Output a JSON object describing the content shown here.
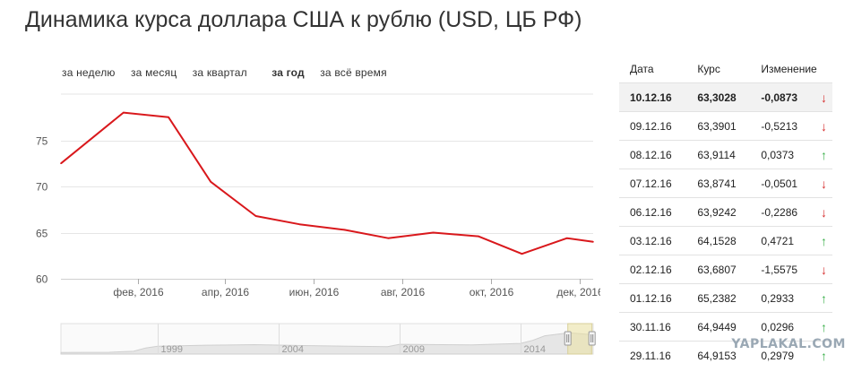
{
  "title": "Динамика курса доллара США к рублю (USD, ЦБ РФ)",
  "periods": [
    {
      "label": "за неделю",
      "active": false
    },
    {
      "label": "за месяц",
      "active": false
    },
    {
      "label": "за квартал",
      "active": false
    },
    {
      "label": "за год",
      "active": true
    },
    {
      "label": "за всё время",
      "active": false
    }
  ],
  "colors": {
    "line": "#d9181c",
    "grid": "#e6e6e6",
    "down": "#d62e2e",
    "up": "#3ab04a"
  },
  "chart_data": [
    {
      "type": "line",
      "x": [
        "2015-12-10",
        "2016-01-22",
        "2016-02-22",
        "2016-03-22",
        "2016-04-22",
        "2016-05-22",
        "2016-06-22",
        "2016-07-22",
        "2016-08-22",
        "2016-09-22",
        "2016-10-22",
        "2016-11-22",
        "2016-12-10"
      ],
      "values": [
        72.5,
        78.0,
        77.5,
        70.5,
        66.8,
        65.9,
        65.3,
        64.4,
        65.0,
        64.6,
        62.7,
        64.4,
        64.0
      ],
      "ylim": [
        60,
        80
      ],
      "yticks": [
        60,
        65,
        70,
        75
      ],
      "xticks": [
        {
          "date": "2016-02-01",
          "label": "фев, 2016"
        },
        {
          "date": "2016-04-01",
          "label": "апр, 2016"
        },
        {
          "date": "2016-06-01",
          "label": "июн, 2016"
        },
        {
          "date": "2016-08-01",
          "label": "авг, 2016"
        },
        {
          "date": "2016-10-01",
          "label": "окт, 2016"
        },
        {
          "date": "2016-12-01",
          "label": "дек, 2016"
        }
      ],
      "grid": true,
      "title": "",
      "xlabel": "",
      "ylabel": ""
    },
    {
      "type": "area",
      "xlim": [
        1995,
        2017
      ],
      "x": [
        1995,
        1997,
        1998,
        1998.5,
        1999,
        2001,
        2003,
        2005,
        2008.5,
        2009,
        2012,
        2014,
        2014.5,
        2015,
        2016,
        2016.9
      ],
      "values": [
        5,
        6,
        9,
        20,
        26,
        29,
        31,
        28,
        24,
        32,
        30,
        35,
        45,
        60,
        70,
        64
      ],
      "ylim": [
        0,
        100
      ],
      "xticks": [
        {
          "year": 1999,
          "label": "1999"
        },
        {
          "year": 2004,
          "label": "2004"
        },
        {
          "year": 2009,
          "label": "2009"
        },
        {
          "year": 2014,
          "label": "2014"
        }
      ],
      "selection": [
        2015.95,
        2016.95
      ]
    }
  ],
  "table": {
    "headers": [
      "Дата",
      "Курс",
      "Изменение"
    ],
    "rows": [
      {
        "date": "10.12.16",
        "rate": "63,3028",
        "change": "-0,0873",
        "dir": "down",
        "arrow": "↓",
        "highlight": true
      },
      {
        "date": "09.12.16",
        "rate": "63,3901",
        "change": "-0,5213",
        "dir": "down",
        "arrow": "↓"
      },
      {
        "date": "08.12.16",
        "rate": "63,9114",
        "change": "0,0373",
        "dir": "up",
        "arrow": "↑"
      },
      {
        "date": "07.12.16",
        "rate": "63,8741",
        "change": "-0,0501",
        "dir": "down",
        "arrow": "↓"
      },
      {
        "date": "06.12.16",
        "rate": "63,9242",
        "change": "-0,2286",
        "dir": "down",
        "arrow": "↓"
      },
      {
        "date": "03.12.16",
        "rate": "64,1528",
        "change": "0,4721",
        "dir": "up",
        "arrow": "↑"
      },
      {
        "date": "02.12.16",
        "rate": "63,6807",
        "change": "-1,5575",
        "dir": "down",
        "arrow": "↓"
      },
      {
        "date": "01.12.16",
        "rate": "65,2382",
        "change": "0,2933",
        "dir": "up",
        "arrow": "↑"
      },
      {
        "date": "30.11.16",
        "rate": "64,9449",
        "change": "0,0296",
        "dir": "up",
        "arrow": "↑"
      },
      {
        "date": "29.11.16",
        "rate": "64,9153",
        "change": "0,2979",
        "dir": "up",
        "arrow": "↑"
      }
    ]
  },
  "watermark": "YAPLAKAL.COM"
}
